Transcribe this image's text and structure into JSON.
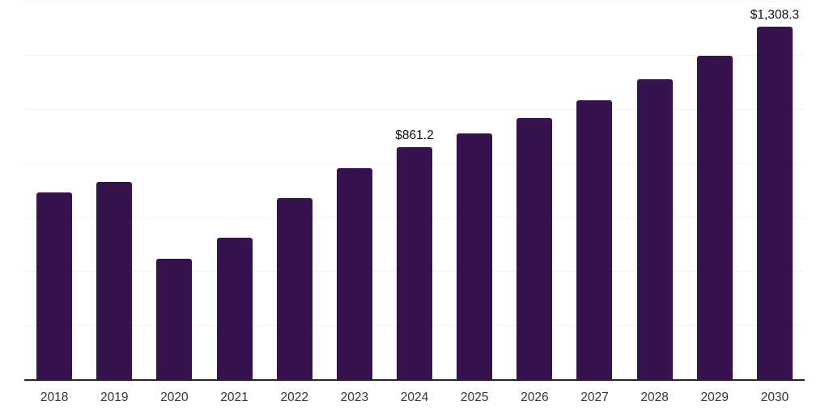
{
  "chart_data": {
    "type": "bar",
    "title": "",
    "xlabel": "",
    "ylabel": "",
    "categories": [
      "2018",
      "2019",
      "2020",
      "2021",
      "2022",
      "2023",
      "2024",
      "2025",
      "2026",
      "2027",
      "2028",
      "2029",
      "2030"
    ],
    "values": [
      694,
      732,
      448,
      527,
      674,
      785,
      861.2,
      912,
      969,
      1036,
      1112,
      1201,
      1308.3
    ],
    "data_labels": {
      "2024": "$861.2",
      "2030": "$1,308.3"
    },
    "ylim": [
      0,
      1400
    ],
    "gridline_step": 200,
    "grid": true,
    "legend": false,
    "colors": {
      "bar": "#36124F",
      "axis_line": "#262626",
      "gridline": "#F2F2F2",
      "tick_label": "#333333",
      "data_label": "#111111",
      "background": "#FFFFFF"
    }
  }
}
